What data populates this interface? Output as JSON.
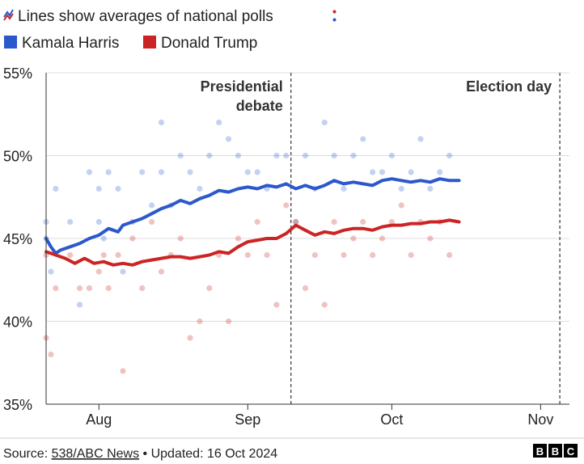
{
  "header": {
    "title": "Lines show averages of national polls",
    "legend": [
      {
        "label": "Kamala Harris",
        "color": "#2b58cc"
      },
      {
        "label": "Donald Trump",
        "color": "#cc2424"
      }
    ]
  },
  "footer": {
    "source_prefix": "Source: ",
    "source_link": "538/ABC News",
    "updated": " • Updated: 16 Oct 2024",
    "logo": "BBC"
  },
  "chart_data": {
    "type": "line",
    "ylabel": "",
    "ylim": [
      35,
      55
    ],
    "yticks": [
      "35%",
      "40%",
      "45%",
      "50%",
      "55%"
    ],
    "ytick_values": [
      35,
      40,
      45,
      50,
      55
    ],
    "xlim": [
      "2024-07-21",
      "2024-11-07"
    ],
    "xticks": [
      {
        "label": "Aug",
        "date": "2024-08-01"
      },
      {
        "label": "Sep",
        "date": "2024-09-01"
      },
      {
        "label": "Oct",
        "date": "2024-10-01"
      },
      {
        "label": "Nov",
        "date": "2024-11-01"
      }
    ],
    "grid": true,
    "annotations": [
      {
        "lines": [
          "Presidential",
          "debate"
        ],
        "date": "2024-09-10"
      },
      {
        "lines": [
          "Election day"
        ],
        "date": "2024-11-05"
      }
    ],
    "series": [
      {
        "name": "Kamala Harris",
        "color": "#2b58cc",
        "dates": [
          "2024-07-21",
          "2024-07-22",
          "2024-07-23",
          "2024-07-24",
          "2024-07-26",
          "2024-07-28",
          "2024-07-30",
          "2024-08-01",
          "2024-08-03",
          "2024-08-05",
          "2024-08-06",
          "2024-08-08",
          "2024-08-10",
          "2024-08-12",
          "2024-08-14",
          "2024-08-16",
          "2024-08-18",
          "2024-08-20",
          "2024-08-22",
          "2024-08-24",
          "2024-08-26",
          "2024-08-28",
          "2024-08-30",
          "2024-09-01",
          "2024-09-03",
          "2024-09-05",
          "2024-09-07",
          "2024-09-09",
          "2024-09-11",
          "2024-09-13",
          "2024-09-15",
          "2024-09-17",
          "2024-09-19",
          "2024-09-21",
          "2024-09-23",
          "2024-09-25",
          "2024-09-27",
          "2024-09-29",
          "2024-10-01",
          "2024-10-03",
          "2024-10-05",
          "2024-10-07",
          "2024-10-09",
          "2024-10-11",
          "2024-10-13",
          "2024-10-15"
        ],
        "values": [
          45.0,
          44.5,
          44.1,
          44.3,
          44.5,
          44.7,
          45.0,
          45.2,
          45.6,
          45.4,
          45.8,
          46.0,
          46.2,
          46.5,
          46.8,
          47.0,
          47.3,
          47.1,
          47.4,
          47.6,
          47.9,
          47.8,
          48.0,
          48.1,
          48.0,
          48.2,
          48.1,
          48.3,
          48.0,
          48.2,
          48.0,
          48.2,
          48.5,
          48.3,
          48.4,
          48.3,
          48.2,
          48.5,
          48.6,
          48.5,
          48.4,
          48.5,
          48.4,
          48.6,
          48.5,
          48.5
        ]
      },
      {
        "name": "Donald Trump",
        "color": "#cc2424",
        "dates": [
          "2024-07-21",
          "2024-07-22",
          "2024-07-23",
          "2024-07-25",
          "2024-07-27",
          "2024-07-29",
          "2024-07-31",
          "2024-08-02",
          "2024-08-04",
          "2024-08-06",
          "2024-08-08",
          "2024-08-10",
          "2024-08-12",
          "2024-08-14",
          "2024-08-16",
          "2024-08-18",
          "2024-08-20",
          "2024-08-22",
          "2024-08-24",
          "2024-08-26",
          "2024-08-28",
          "2024-08-30",
          "2024-09-01",
          "2024-09-03",
          "2024-09-05",
          "2024-09-07",
          "2024-09-09",
          "2024-09-11",
          "2024-09-13",
          "2024-09-15",
          "2024-09-17",
          "2024-09-19",
          "2024-09-21",
          "2024-09-23",
          "2024-09-25",
          "2024-09-27",
          "2024-09-29",
          "2024-10-01",
          "2024-10-03",
          "2024-10-05",
          "2024-10-07",
          "2024-10-09",
          "2024-10-11",
          "2024-10-13",
          "2024-10-15"
        ],
        "values": [
          44.2,
          44.1,
          44.0,
          43.8,
          43.5,
          43.8,
          43.5,
          43.6,
          43.4,
          43.5,
          43.4,
          43.6,
          43.7,
          43.8,
          43.9,
          43.9,
          43.8,
          43.9,
          44.0,
          44.2,
          44.1,
          44.5,
          44.8,
          44.9,
          45.0,
          45.0,
          45.3,
          45.8,
          45.5,
          45.2,
          45.4,
          45.3,
          45.5,
          45.6,
          45.6,
          45.5,
          45.7,
          45.8,
          45.8,
          45.9,
          45.9,
          46.0,
          46.0,
          46.1,
          46.0
        ]
      }
    ],
    "polls": {
      "Kamala Harris": [
        [
          "2024-07-21",
          46
        ],
        [
          "2024-07-21",
          45
        ],
        [
          "2024-07-22",
          43
        ],
        [
          "2024-07-23",
          48
        ],
        [
          "2024-07-26",
          46
        ],
        [
          "2024-07-28",
          41
        ],
        [
          "2024-07-30",
          49
        ],
        [
          "2024-08-01",
          48
        ],
        [
          "2024-08-01",
          46
        ],
        [
          "2024-08-02",
          45
        ],
        [
          "2024-08-03",
          49
        ],
        [
          "2024-08-05",
          48
        ],
        [
          "2024-08-06",
          43
        ],
        [
          "2024-08-08",
          46
        ],
        [
          "2024-08-10",
          49
        ],
        [
          "2024-08-12",
          47
        ],
        [
          "2024-08-14",
          52
        ],
        [
          "2024-08-14",
          49
        ],
        [
          "2024-08-16",
          47
        ],
        [
          "2024-08-18",
          50
        ],
        [
          "2024-08-20",
          49
        ],
        [
          "2024-08-22",
          48
        ],
        [
          "2024-08-24",
          50
        ],
        [
          "2024-08-26",
          52
        ],
        [
          "2024-08-28",
          51
        ],
        [
          "2024-08-30",
          50
        ],
        [
          "2024-09-01",
          49
        ],
        [
          "2024-09-03",
          49
        ],
        [
          "2024-09-05",
          48
        ],
        [
          "2024-09-07",
          50
        ],
        [
          "2024-09-09",
          50
        ],
        [
          "2024-09-11",
          46
        ],
        [
          "2024-09-13",
          50
        ],
        [
          "2024-09-15",
          48
        ],
        [
          "2024-09-17",
          52
        ],
        [
          "2024-09-19",
          50
        ],
        [
          "2024-09-21",
          48
        ],
        [
          "2024-09-23",
          50
        ],
        [
          "2024-09-25",
          51
        ],
        [
          "2024-09-27",
          49
        ],
        [
          "2024-09-29",
          49
        ],
        [
          "2024-10-01",
          50
        ],
        [
          "2024-10-03",
          48
        ],
        [
          "2024-10-05",
          49
        ],
        [
          "2024-10-07",
          51
        ],
        [
          "2024-10-09",
          48
        ],
        [
          "2024-10-11",
          49
        ],
        [
          "2024-10-13",
          50
        ]
      ],
      "Donald Trump": [
        [
          "2024-07-21",
          39
        ],
        [
          "2024-07-21",
          44
        ],
        [
          "2024-07-22",
          38
        ],
        [
          "2024-07-23",
          42
        ],
        [
          "2024-07-26",
          44
        ],
        [
          "2024-07-28",
          42
        ],
        [
          "2024-07-30",
          42
        ],
        [
          "2024-08-01",
          43
        ],
        [
          "2024-08-02",
          44
        ],
        [
          "2024-08-03",
          42
        ],
        [
          "2024-08-05",
          44
        ],
        [
          "2024-08-06",
          37
        ],
        [
          "2024-08-08",
          45
        ],
        [
          "2024-08-10",
          42
        ],
        [
          "2024-08-12",
          46
        ],
        [
          "2024-08-14",
          43
        ],
        [
          "2024-08-16",
          44
        ],
        [
          "2024-08-18",
          45
        ],
        [
          "2024-08-20",
          39
        ],
        [
          "2024-08-22",
          40
        ],
        [
          "2024-08-24",
          42
        ],
        [
          "2024-08-26",
          44
        ],
        [
          "2024-08-28",
          40
        ],
        [
          "2024-08-30",
          45
        ],
        [
          "2024-09-01",
          44
        ],
        [
          "2024-09-03",
          46
        ],
        [
          "2024-09-05",
          44
        ],
        [
          "2024-09-07",
          41
        ],
        [
          "2024-09-09",
          47
        ],
        [
          "2024-09-11",
          46
        ],
        [
          "2024-09-13",
          42
        ],
        [
          "2024-09-15",
          44
        ],
        [
          "2024-09-17",
          41
        ],
        [
          "2024-09-19",
          46
        ],
        [
          "2024-09-21",
          44
        ],
        [
          "2024-09-23",
          45
        ],
        [
          "2024-09-25",
          46
        ],
        [
          "2024-09-27",
          44
        ],
        [
          "2024-09-29",
          45
        ],
        [
          "2024-10-01",
          46
        ],
        [
          "2024-10-03",
          47
        ],
        [
          "2024-10-05",
          44
        ],
        [
          "2024-10-07",
          46
        ],
        [
          "2024-10-09",
          45
        ],
        [
          "2024-10-11",
          46
        ],
        [
          "2024-10-13",
          44
        ]
      ]
    }
  }
}
